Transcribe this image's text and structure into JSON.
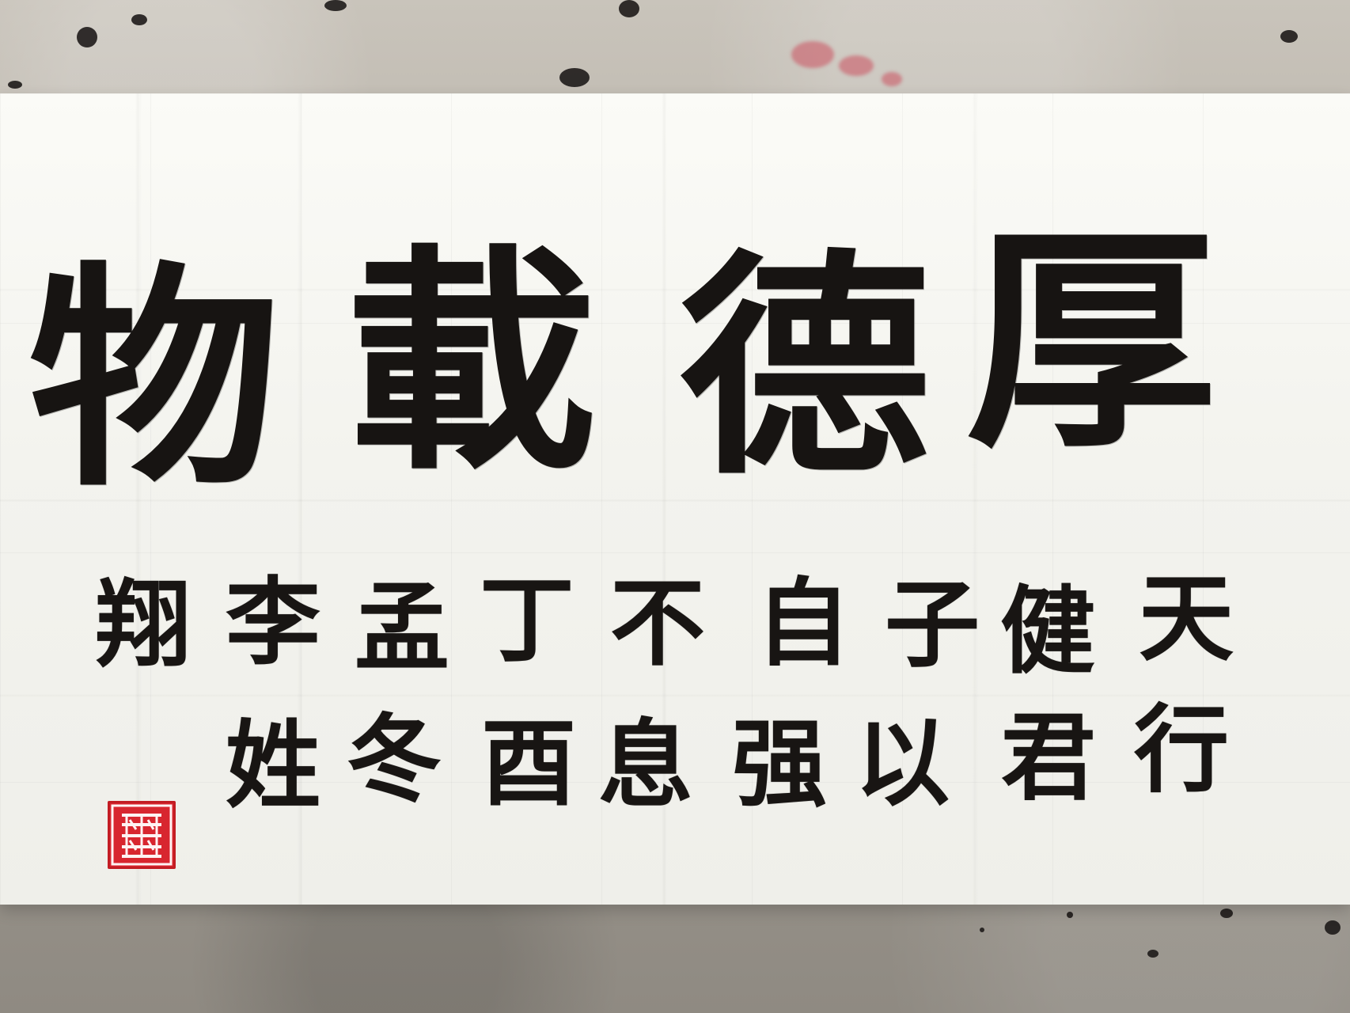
{
  "scene": {
    "background": "#8d8880",
    "paper_color": "#f6f6f2",
    "ink_color": "#171412",
    "seal_color": "#d8262f"
  },
  "calligraphy": {
    "large_text": [
      "物",
      "載",
      "德",
      "厚"
    ],
    "vertical_columns": [
      [
        "天",
        "行"
      ],
      [
        "健",
        "君"
      ],
      [
        "子",
        "以"
      ],
      [
        "自",
        "强"
      ],
      [
        "不",
        "息"
      ],
      [
        "丁",
        "酉"
      ],
      [
        "孟",
        "冬"
      ],
      [
        "李",
        "姓"
      ],
      [
        "翔",
        ""
      ]
    ]
  },
  "seal": {
    "icon": "red-square-seal-icon"
  }
}
